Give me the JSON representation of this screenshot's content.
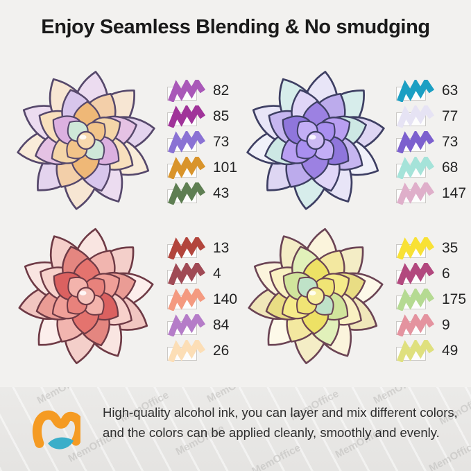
{
  "title": "Enjoy Seamless Blending & No smudging",
  "palettes": [
    {
      "id": "peach-succulent",
      "swatches": [
        {
          "code": "82",
          "color": "#a958b8"
        },
        {
          "code": "85",
          "color": "#a03399"
        },
        {
          "code": "73",
          "color": "#8a72d4"
        },
        {
          "code": "101",
          "color": "#d9942b"
        },
        {
          "code": "43",
          "color": "#5e7e52"
        }
      ],
      "flower": {
        "outline": "#56486b",
        "outer": [
          "#ecdcf0",
          "#f7e6d3",
          "#e4d4ee",
          "#f9ecd9"
        ],
        "mid": [
          "#f3cfa9",
          "#e5c2e4",
          "#f8e0bd",
          "#d8c6ec"
        ],
        "inner": [
          "#efb877",
          "#f4d6a9",
          "#dcb1e0"
        ],
        "core": [
          "#f2c489",
          "#cfe8d8"
        ],
        "bud": "#f7d9ae"
      }
    },
    {
      "id": "purple-succulent",
      "swatches": [
        {
          "code": "63",
          "color": "#1b9fc3"
        },
        {
          "code": "77",
          "color": "#e6e3f4"
        },
        {
          "code": "73",
          "color": "#7c60ce"
        },
        {
          "code": "68",
          "color": "#a5e3d9"
        },
        {
          "code": "147",
          "color": "#dfafca"
        }
      ],
      "flower": {
        "outline": "#3e3f63",
        "outer": [
          "#e8e5f7",
          "#d7edeb",
          "#ded6f3",
          "#f0f1f9"
        ],
        "mid": [
          "#bcabec",
          "#cde8e4",
          "#c6b6f0",
          "#e0d6f7"
        ],
        "inner": [
          "#9c81e2",
          "#b99ff2",
          "#8f76dc"
        ],
        "core": [
          "#a98ff0",
          "#c3aef6"
        ],
        "bud": "#cdbaf4"
      }
    },
    {
      "id": "pink-succulent",
      "swatches": [
        {
          "code": "13",
          "color": "#b2453c"
        },
        {
          "code": "4",
          "color": "#a04a55"
        },
        {
          "code": "140",
          "color": "#f49a80"
        },
        {
          "code": "84",
          "color": "#b57cc8"
        },
        {
          "code": "26",
          "color": "#fcdeb6"
        }
      ],
      "flower": {
        "outline": "#6e3a45",
        "outer": [
          "#f9e5e1",
          "#f4cfca",
          "#fceeec",
          "#f1c6c1"
        ],
        "mid": [
          "#f1b5af",
          "#ea9c95",
          "#f7d1cb",
          "#e48680"
        ],
        "inner": [
          "#e4736e",
          "#f09f98",
          "#db6160"
        ],
        "core": [
          "#e8827c",
          "#f3b3ac"
        ],
        "bud": "#f5c4bc"
      }
    },
    {
      "id": "yellow-succulent",
      "swatches": [
        {
          "code": "35",
          "color": "#f8e135"
        },
        {
          "code": "6",
          "color": "#b2487e"
        },
        {
          "code": "175",
          "color": "#b5da92"
        },
        {
          "code": "9",
          "color": "#e4939f"
        },
        {
          "code": "49",
          "color": "#dfe07e"
        }
      ],
      "flower": {
        "outline": "#6b4454",
        "outer": [
          "#fbf4dc",
          "#f4edc6",
          "#fdf9e9",
          "#f0e7ba"
        ],
        "mid": [
          "#f3e8a0",
          "#e9dd84",
          "#f9f1c2",
          "#e1f1ba"
        ],
        "inner": [
          "#ede165",
          "#f5eb8a",
          "#d1e59c"
        ],
        "core": [
          "#f0e475",
          "#bfe2c8"
        ],
        "bud": "#f6eda0"
      }
    }
  ],
  "footer": {
    "line1": "High-quality alcohol ink, you can layer and mix different colors,",
    "line2": "and the colors can be applied cleanly, smoothly and evenly.",
    "watermark": "MemOffice",
    "logo_orange": "#f59b23",
    "logo_blue": "#3baec9"
  }
}
